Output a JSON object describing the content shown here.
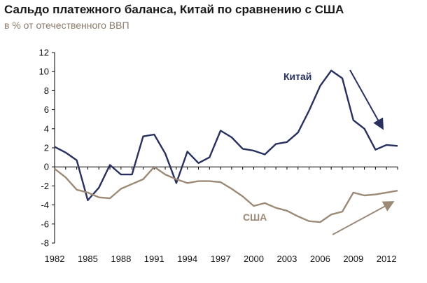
{
  "title": "Сальдо платежного баланса, Китай по сравнению с США",
  "subtitle": "в % от отечественного ВВП",
  "colors": {
    "china": "#27305e",
    "usa": "#9c8a76",
    "axis": "#000000"
  },
  "chart_data": {
    "type": "line",
    "title": "Сальдо платежного баланса, Китай по сравнению с США",
    "subtitle": "в % от отечественного ВВП",
    "ylim": [
      -8,
      12
    ],
    "yticks": [
      12,
      10,
      8,
      6,
      4,
      2,
      0,
      -2,
      -4,
      -6,
      -8
    ],
    "xlim": [
      1982,
      2013
    ],
    "xticks": [
      1982,
      1985,
      1988,
      1991,
      1994,
      1997,
      2000,
      2003,
      2006,
      2009,
      2012
    ],
    "grid": false,
    "series": [
      {
        "name": "Китай",
        "x": [
          1982,
          1983,
          1984,
          1985,
          1986,
          1987,
          1988,
          1989,
          1990,
          1991,
          1992,
          1993,
          1994,
          1995,
          1996,
          1997,
          1998,
          1999,
          2000,
          2001,
          2002,
          2003,
          2004,
          2005,
          2006,
          2007,
          2008,
          2009,
          2010,
          2011,
          2012,
          2013
        ],
        "values": [
          2.1,
          1.5,
          0.7,
          -3.5,
          -2.2,
          0.2,
          -0.8,
          -0.8,
          3.2,
          3.4,
          1.4,
          -1.7,
          1.6,
          0.4,
          1.0,
          3.8,
          3.1,
          1.9,
          1.7,
          1.3,
          2.4,
          2.6,
          3.6,
          5.9,
          8.5,
          10.1,
          9.3,
          4.9,
          4.0,
          1.8,
          2.3,
          2.2
        ]
      },
      {
        "name": "США",
        "x": [
          1982,
          1983,
          1984,
          1985,
          1986,
          1987,
          1988,
          1989,
          1990,
          1991,
          1992,
          1993,
          1994,
          1995,
          1996,
          1997,
          1998,
          1999,
          2000,
          2001,
          2002,
          2003,
          2004,
          2005,
          2006,
          2007,
          2008,
          2009,
          2010,
          2011,
          2012,
          2013
        ],
        "values": [
          -0.2,
          -1.1,
          -2.4,
          -2.7,
          -3.2,
          -3.3,
          -2.3,
          -1.8,
          -1.3,
          0.0,
          -0.8,
          -1.3,
          -1.7,
          -1.5,
          -1.5,
          -1.6,
          -2.3,
          -3.1,
          -4.1,
          -3.8,
          -4.3,
          -4.6,
          -5.2,
          -5.7,
          -5.8,
          -5.0,
          -4.7,
          -2.7,
          -3.0,
          -2.9,
          -2.7,
          -2.5
        ]
      }
    ]
  }
}
